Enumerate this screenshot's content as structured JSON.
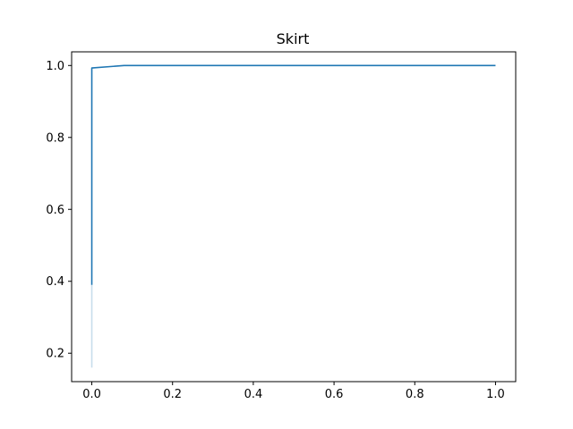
{
  "chart_data": {
    "type": "line",
    "title": "Skirt",
    "xlabel": "",
    "ylabel": "",
    "xlim": [
      -0.05,
      1.05
    ],
    "ylim": [
      0.121,
      1.038
    ],
    "x_ticks": [
      0.0,
      0.2,
      0.4,
      0.6,
      0.8,
      1.0
    ],
    "y_ticks": [
      0.2,
      0.4,
      0.6,
      0.8,
      1.0
    ],
    "x_tick_labels": [
      "0.0",
      "0.2",
      "0.4",
      "0.6",
      "0.8",
      "1.0"
    ],
    "y_tick_labels": [
      "0.2",
      "0.4",
      "0.6",
      "0.8",
      "1.0"
    ],
    "grid": false,
    "legend": "none",
    "series": [
      {
        "color": "#1f77b4",
        "opacity": 1.0,
        "x": [
          0.0,
          0.0,
          0.0,
          0.08,
          0.1,
          1.0
        ],
        "y": [
          0.39,
          0.99,
          0.993,
          1.0,
          1.0,
          1.0
        ]
      },
      {
        "color": "#1f77b4",
        "opacity": 0.25,
        "x": [
          0.0,
          0.0
        ],
        "y": [
          0.16,
          0.39
        ]
      }
    ]
  }
}
